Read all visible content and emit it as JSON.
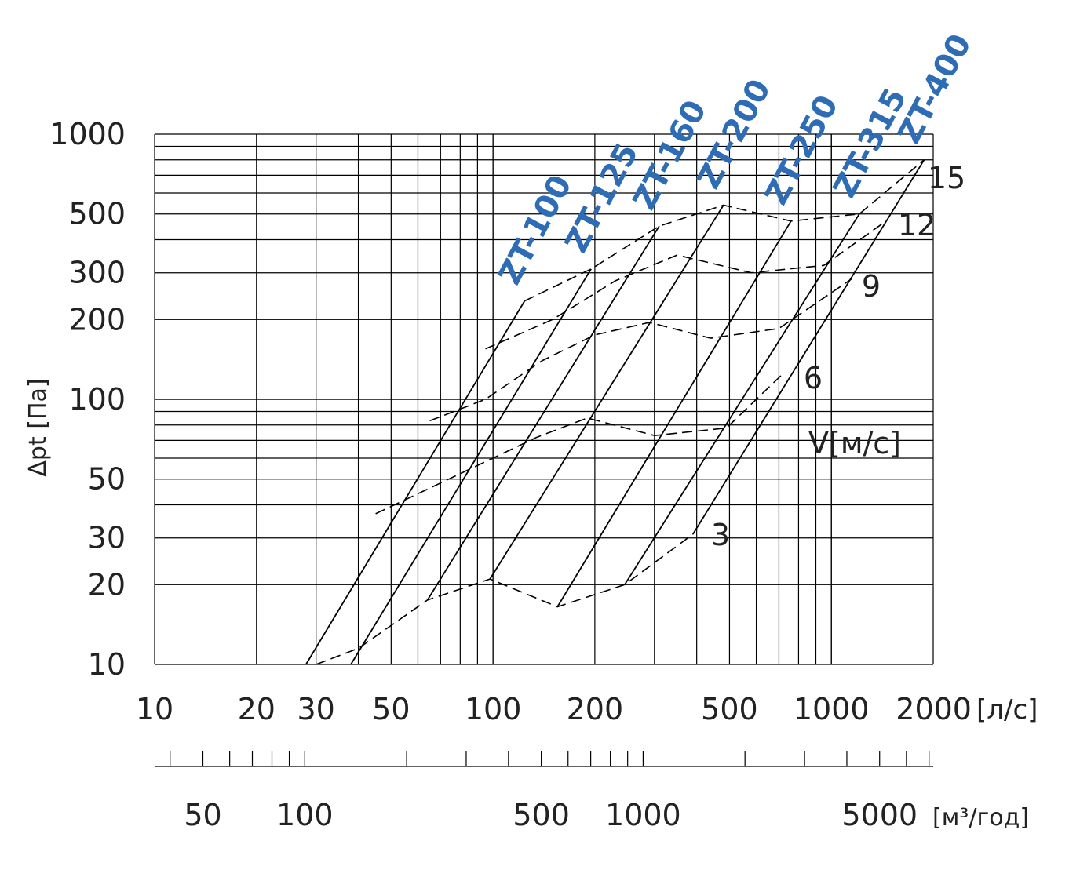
{
  "chart_data": {
    "type": "line",
    "title": "",
    "ylabel": "Δpt [Па]",
    "xlabel": "",
    "x_unit": "[л/с]",
    "x2_unit": "[м³/год]",
    "velocity_label": "V[м/с]",
    "x_scale": "log",
    "y_scale": "log",
    "xlim": [
      10,
      2000
    ],
    "ylim": [
      10,
      1000
    ],
    "grid": true,
    "y_ticks": [
      "1000",
      "500",
      "300",
      "200",
      "100",
      "50",
      "30",
      "20",
      "10"
    ],
    "x_ticks": [
      "10",
      "20",
      "30",
      "50",
      "100",
      "200",
      "500",
      "1000",
      "2000"
    ],
    "x2_ticks": [
      "50",
      "100",
      "500",
      "1000",
      "5000"
    ],
    "series": [
      {
        "name": "ZT-100",
        "x": [
          28,
          124
        ],
        "y": [
          10,
          235
        ]
      },
      {
        "name": "ZT-125",
        "x": [
          38,
          195
        ],
        "y": [
          10,
          310
        ]
      },
      {
        "name": "ZT-160",
        "x": [
          64,
          310
        ],
        "y": [
          17.5,
          450
        ]
      },
      {
        "name": "ZT-200",
        "x": [
          98,
          480
        ],
        "y": [
          21,
          540
        ]
      },
      {
        "name": "ZT-250",
        "x": [
          155,
          760
        ],
        "y": [
          16.5,
          470
        ]
      },
      {
        "name": "ZT-315",
        "x": [
          245,
          1210
        ],
        "y": [
          20,
          500
        ]
      },
      {
        "name": "ZT-400",
        "x": [
          390,
          1880
        ],
        "y": [
          31,
          800
        ]
      }
    ],
    "velocity_curves": [
      {
        "name": "3",
        "x": [
          30,
          40,
          64,
          98,
          155,
          245,
          390
        ],
        "y": [
          10,
          11.5,
          17.5,
          21,
          16.5,
          20,
          31
        ]
      },
      {
        "name": "6",
        "x": [
          45,
          100,
          135,
          190,
          300,
          490,
          720
        ],
        "y": [
          37,
          60,
          72,
          85,
          73,
          78,
          125
        ]
      },
      {
        "name": "9",
        "x": [
          65,
          95,
          140,
          200,
          290,
          440,
          700,
          1150
        ],
        "y": [
          83,
          100,
          140,
          175,
          195,
          170,
          185,
          285
        ]
      },
      {
        "name": "12",
        "x": [
          95,
          150,
          230,
          350,
          580,
          950,
          1450
        ],
        "y": [
          155,
          200,
          280,
          350,
          300,
          320,
          470
        ]
      },
      {
        "name": "15",
        "x": [
          124,
          195,
          310,
          480,
          760,
          1210,
          1880
        ],
        "y": [
          235,
          310,
          450,
          540,
          470,
          500,
          800
        ]
      }
    ]
  }
}
